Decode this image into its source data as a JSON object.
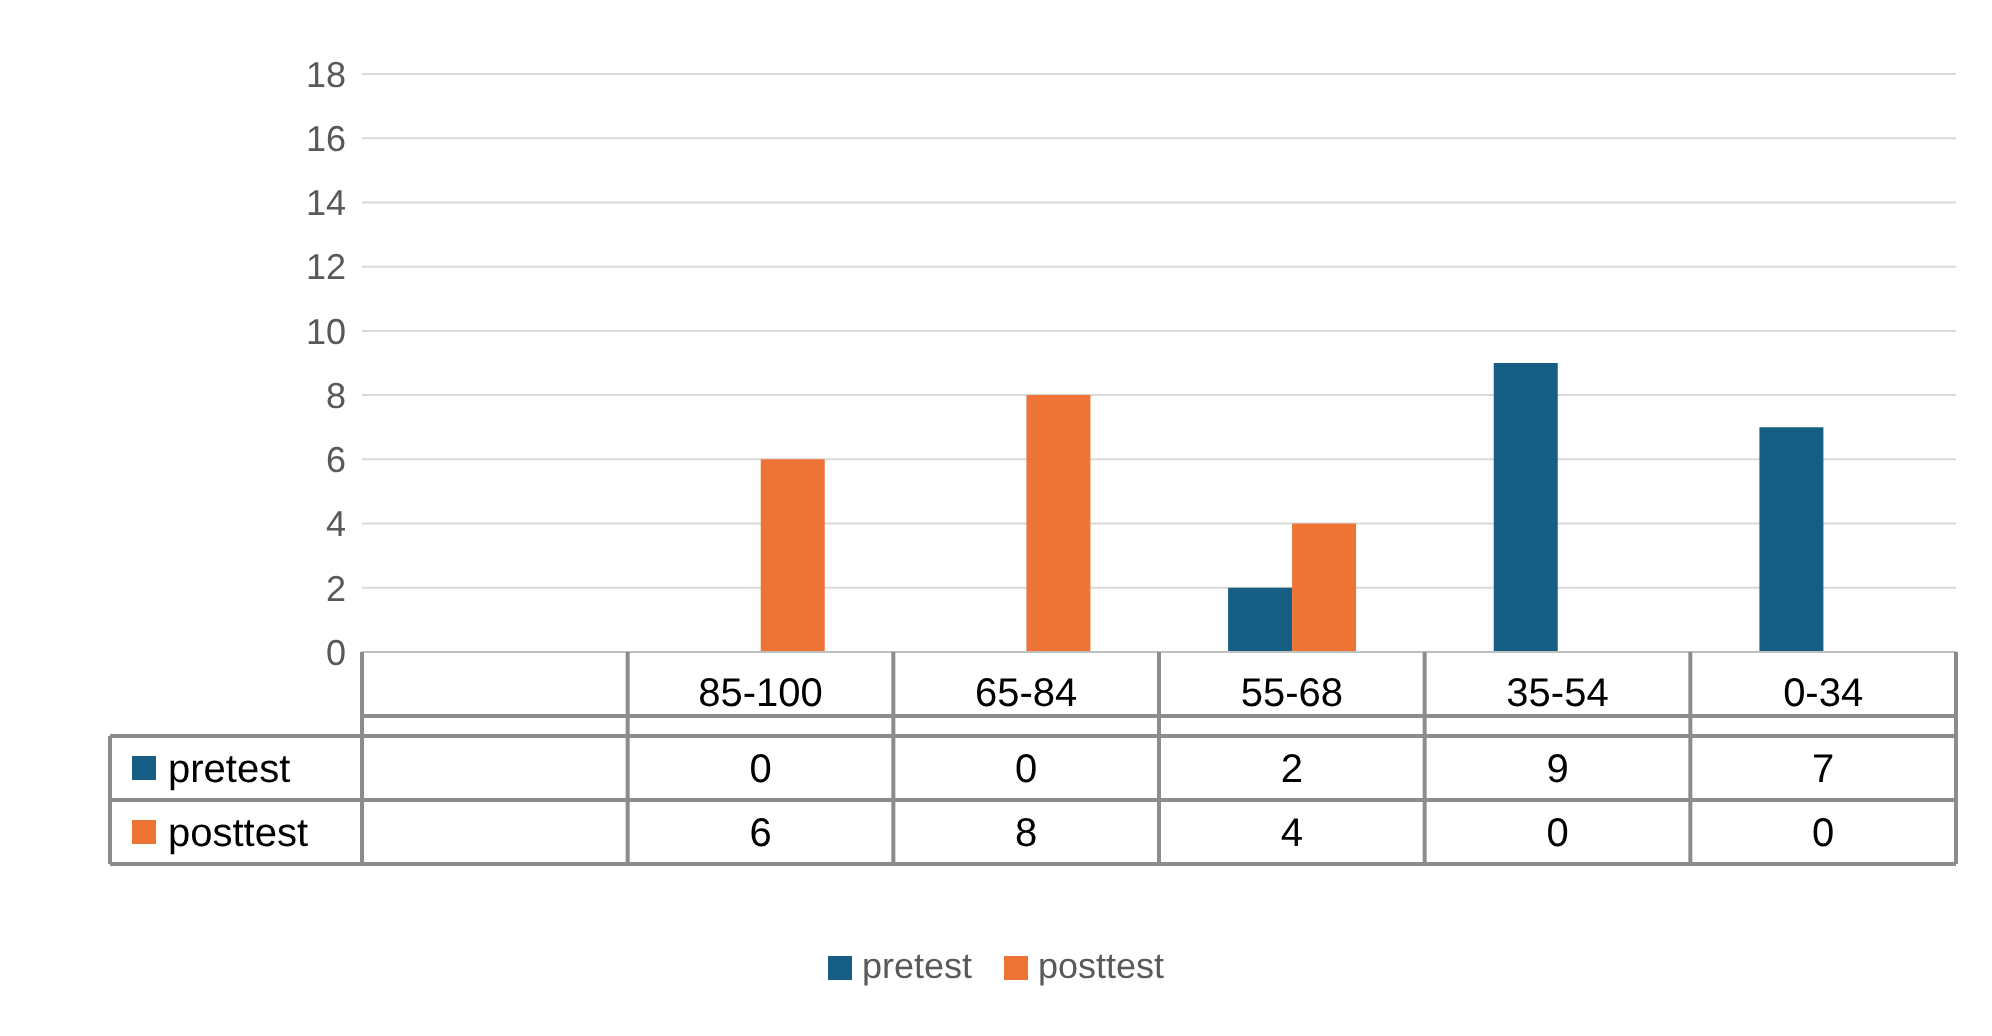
{
  "chart_data": {
    "type": "bar",
    "categories": [
      null,
      "85-100",
      "65-84",
      "55-68",
      "35-54",
      "0-34"
    ],
    "series": [
      {
        "name": "pretest",
        "color": "#165e83",
        "values": [
          null,
          0,
          0,
          2,
          9,
          7
        ]
      },
      {
        "name": "posttest",
        "color": "#ed7434",
        "values": [
          null,
          6,
          8,
          4,
          0,
          0
        ]
      }
    ],
    "ylim": [
      0,
      18
    ],
    "yticks": [
      0,
      2,
      4,
      6,
      8,
      10,
      12,
      14,
      16,
      18
    ],
    "grid": "y",
    "legend": "bottom",
    "data_labels": true
  }
}
